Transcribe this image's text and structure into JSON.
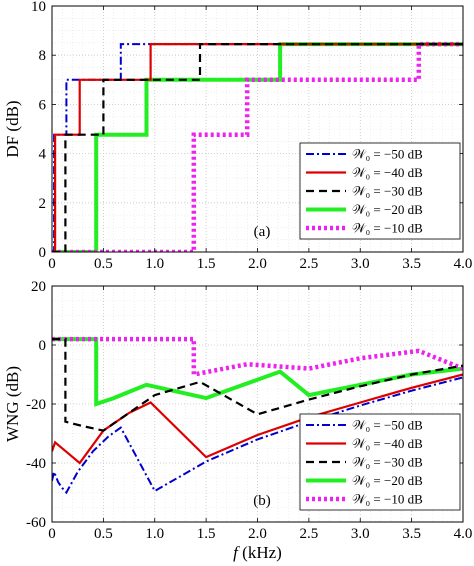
{
  "chart_data": [
    {
      "type": "line",
      "panel_label": "(a)",
      "ylabel": "DF (dB)",
      "xlim": [
        0,
        4
      ],
      "ylim": [
        0,
        10
      ],
      "xticks": [
        0,
        0.5,
        1,
        1.5,
        2,
        2.5,
        3,
        3.5,
        4
      ],
      "xtick_labels": [
        "0",
        "0.5",
        "1.0",
        "1.5",
        "2.0",
        "2.5",
        "3.0",
        "3.5",
        "4.0"
      ],
      "yticks": [
        0,
        2,
        4,
        6,
        8,
        10
      ],
      "ytick_labels": [
        "0",
        "2",
        "4",
        "6",
        "8",
        "10"
      ],
      "grid": true,
      "legend_position": "bottom-right",
      "series": [
        {
          "name": "𝒲₀ = −50 dB",
          "color": "#0000cc",
          "style": "dashdot",
          "x": [
            0,
            0.02,
            0.02,
            0.14,
            0.14,
            0.67,
            0.67,
            4.0
          ],
          "y": [
            0,
            0,
            4.77,
            4.77,
            7.0,
            7.0,
            8.45,
            8.45
          ]
        },
        {
          "name": "𝒲₀ = −40 dB",
          "color": "#dd0000",
          "style": "solid",
          "x": [
            0,
            0.03,
            0.03,
            0.27,
            0.27,
            0.96,
            0.96,
            4.0
          ],
          "y": [
            0,
            0,
            4.77,
            4.77,
            7.0,
            7.0,
            8.45,
            8.45
          ]
        },
        {
          "name": "𝒲₀ = −30 dB",
          "color": "#000000",
          "style": "dashed",
          "x": [
            0,
            0.13,
            0.13,
            0.5,
            0.5,
            1.44,
            1.44,
            4.0
          ],
          "y": [
            0,
            0,
            4.77,
            4.77,
            7.0,
            7.0,
            8.45,
            8.45
          ]
        },
        {
          "name": "𝒲₀ = −20 dB",
          "color": "#22ee22",
          "style": "solid-thick",
          "x": [
            0,
            0.43,
            0.43,
            0.92,
            0.92,
            2.22,
            2.22,
            4.0
          ],
          "y": [
            0,
            0,
            4.77,
            4.77,
            7.0,
            7.0,
            8.45,
            8.45
          ]
        },
        {
          "name": "𝒲₀ = −10 dB",
          "color": "#ee22ee",
          "style": "dotted-thick",
          "x": [
            0,
            1.38,
            1.38,
            1.9,
            1.9,
            3.57,
            3.57,
            4.0
          ],
          "y": [
            0,
            0,
            4.77,
            4.77,
            7.0,
            7.0,
            8.45,
            8.45
          ]
        }
      ]
    },
    {
      "type": "line",
      "panel_label": "(b)",
      "ylabel": "WNG (dB)",
      "xlabel": "f (kHz)",
      "xlim": [
        0,
        4
      ],
      "ylim": [
        -60,
        20
      ],
      "xticks": [
        0,
        0.5,
        1,
        1.5,
        2,
        2.5,
        3,
        3.5,
        4
      ],
      "xtick_labels": [
        "0",
        "0.5",
        "1.0",
        "1.5",
        "2.0",
        "2.5",
        "3.0",
        "3.5",
        "4.0"
      ],
      "yticks": [
        -60,
        -40,
        -20,
        0,
        20
      ],
      "ytick_labels": [
        "-60",
        "-40",
        "-20",
        "0",
        "20"
      ],
      "grid": true,
      "legend_position": "bottom-right",
      "series": [
        {
          "name": "𝒲₀ = −50 dB",
          "color": "#0000cc",
          "style": "dashdot",
          "x": [
            0,
            0.02,
            0.02,
            0.06,
            0.1,
            0.14,
            0.14,
            0.25,
            0.4,
            0.55,
            0.67,
            0.67,
            1.0,
            1.5,
            2.0,
            2.5,
            3.0,
            3.5,
            4.0
          ],
          "y": [
            -46,
            -43,
            -43,
            -46.5,
            -48.5,
            -50,
            -50,
            -43,
            -36,
            -31,
            -28,
            -28,
            -49.5,
            -39.5,
            -32,
            -26,
            -20.5,
            -15.5,
            -11
          ]
        },
        {
          "name": "𝒲₀ = −40 dB",
          "color": "#dd0000",
          "style": "solid",
          "x": [
            0,
            0.03,
            0.03,
            0.15,
            0.27,
            0.27,
            0.5,
            0.75,
            0.96,
            0.96,
            1.5,
            2.0,
            2.5,
            3.0,
            3.5,
            4.0
          ],
          "y": [
            -36,
            -33,
            -33,
            -36.5,
            -40,
            -40,
            -29,
            -23,
            -19.5,
            -19.5,
            -38,
            -30.5,
            -24.5,
            -19.5,
            -14.5,
            -10
          ]
        },
        {
          "name": "𝒲₀ = −30 dB",
          "color": "#000000",
          "style": "dashed",
          "x": [
            0,
            0.13,
            0.13,
            0.3,
            0.5,
            0.5,
            1.0,
            1.44,
            1.44,
            2.0,
            2.5,
            3.0,
            3.5,
            4.0
          ],
          "y": [
            2,
            2,
            -26,
            -27.5,
            -29,
            -29,
            -17,
            -12.5,
            -12.5,
            -23.5,
            -18.5,
            -14,
            -10,
            -7
          ]
        },
        {
          "name": "𝒲₀ = −20 dB",
          "color": "#22ee22",
          "style": "solid-thick",
          "x": [
            0,
            0.43,
            0.43,
            0.6,
            0.92,
            0.92,
            1.5,
            2.22,
            2.22,
            2.5,
            3.0,
            3.5,
            4.0
          ],
          "y": [
            2,
            2,
            -20,
            -18,
            -13.5,
            -13.5,
            -18,
            -9,
            -9,
            -17,
            -13.5,
            -10,
            -8
          ]
        },
        {
          "name": "𝒲₀ = −10 dB",
          "color": "#ee22ee",
          "style": "dotted-thick",
          "x": [
            0,
            1.38,
            1.38,
            1.9,
            1.9,
            2.5,
            3.0,
            3.57,
            3.57,
            4.0
          ],
          "y": [
            2,
            2,
            -10,
            -6.5,
            -6.5,
            -8,
            -4.5,
            -2,
            -2,
            -8
          ]
        }
      ]
    }
  ],
  "legend_entries": [
    "𝒲₀ = −50 dB",
    "𝒲₀ = −40 dB",
    "𝒲₀ = −30 dB",
    "𝒲₀ = −20 dB",
    "𝒲₀ = −10 dB"
  ]
}
